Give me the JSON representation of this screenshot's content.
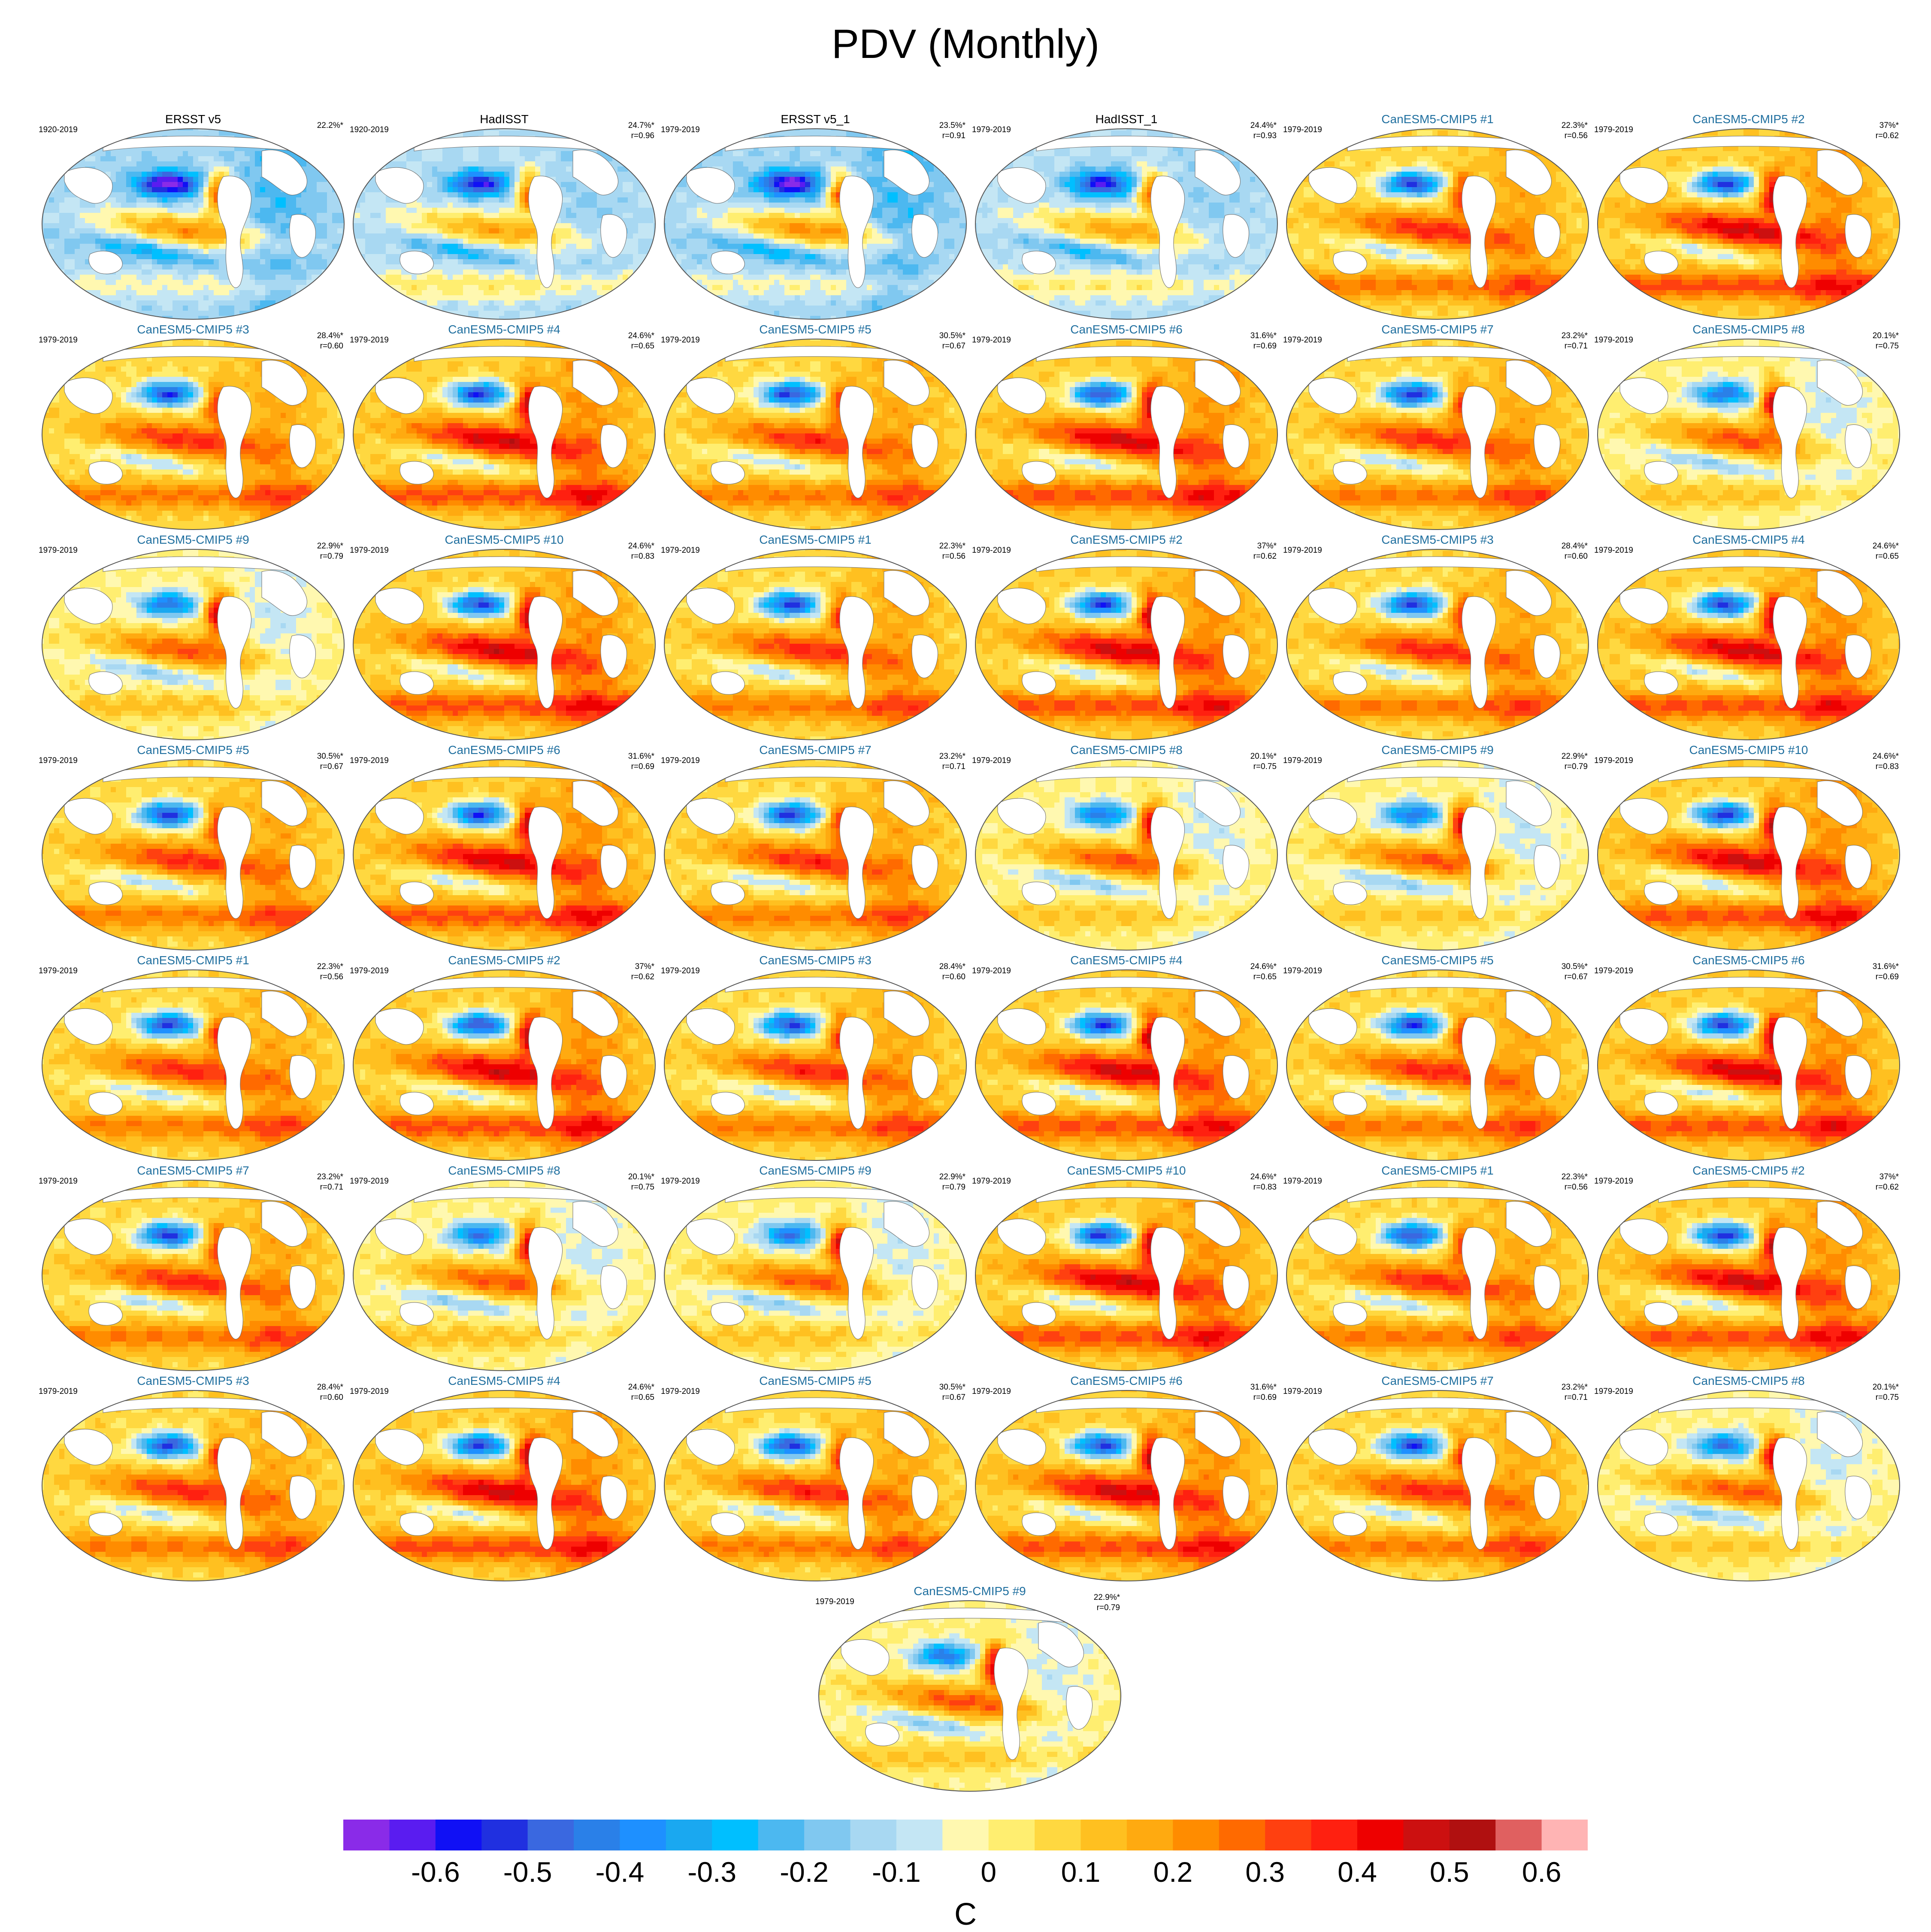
{
  "title": "PDV (Monthly)",
  "colorbar": {
    "units": "C",
    "tick_labels": [
      "-0.6",
      "-0.5",
      "-0.4",
      "-0.3",
      "-0.2",
      "-0.1",
      "0",
      "0.1",
      "0.2",
      "0.3",
      "0.4",
      "0.5",
      "0.6"
    ],
    "colors": [
      "#8a2be8",
      "#5a1cf0",
      "#1010f5",
      "#2030e0",
      "#3a68e0",
      "#2a80e8",
      "#1e90ff",
      "#1aa8f0",
      "#00bfff",
      "#4cb8f0",
      "#80c8f0",
      "#a8d8f2",
      "#c4e6f4",
      "#fff8b0",
      "#ffee70",
      "#ffd840",
      "#ffc020",
      "#ffaa10",
      "#ff8c00",
      "#ff6a00",
      "#ff4010",
      "#ff2010",
      "#ee0000",
      "#cc1010",
      "#b01010",
      "#e06060",
      "#ffb4b4"
    ]
  },
  "chart_data": {
    "type": "heatmap",
    "title": "PDV (Monthly)",
    "units": "C",
    "levels": [
      -0.65,
      -0.6,
      -0.55,
      -0.5,
      -0.45,
      -0.4,
      -0.35,
      -0.3,
      -0.25,
      -0.2,
      -0.15,
      -0.1,
      -0.05,
      0,
      0.05,
      0.1,
      0.15,
      0.2,
      0.25,
      0.3,
      0.35,
      0.4,
      0.45,
      0.5,
      0.55,
      0.6,
      0.65
    ],
    "panels": [
      {
        "title": "ERSST v5",
        "period": "1920-2019",
        "pct": "22.2%*",
        "r": "",
        "kind": "obs",
        "pattern": 0
      },
      {
        "title": "HadISST",
        "period": "1920-2019",
        "pct": "24.7%*",
        "r": "r=0.96",
        "kind": "obs",
        "pattern": 1
      },
      {
        "title": "ERSST v5_1",
        "period": "1979-2019",
        "pct": "23.5%*",
        "r": "r=0.91",
        "kind": "obs",
        "pattern": 0
      },
      {
        "title": "HadISST_1",
        "period": "1979-2019",
        "pct": "24.4%*",
        "r": "r=0.93",
        "kind": "obs",
        "pattern": 1
      },
      {
        "title": "CanESM5-CMIP5 #1",
        "period": "1979-2019",
        "pct": "22.3%*",
        "r": "r=0.56",
        "kind": "model",
        "pattern": 2
      },
      {
        "title": "CanESM5-CMIP5 #2",
        "period": "1979-2019",
        "pct": "37%*",
        "r": "r=0.62",
        "kind": "model",
        "pattern": 3
      },
      {
        "title": "CanESM5-CMIP5 #3",
        "period": "1979-2019",
        "pct": "28.4%*",
        "r": "r=0.60",
        "kind": "model",
        "pattern": 2
      },
      {
        "title": "CanESM5-CMIP5 #4",
        "period": "1979-2019",
        "pct": "24.6%*",
        "r": "r=0.65",
        "kind": "model",
        "pattern": 3
      },
      {
        "title": "CanESM5-CMIP5 #5",
        "period": "1979-2019",
        "pct": "30.5%*",
        "r": "r=0.67",
        "kind": "model",
        "pattern": 2
      },
      {
        "title": "CanESM5-CMIP5 #6",
        "period": "1979-2019",
        "pct": "31.6%*",
        "r": "r=0.69",
        "kind": "model",
        "pattern": 3
      },
      {
        "title": "CanESM5-CMIP5 #7",
        "period": "1979-2019",
        "pct": "23.2%*",
        "r": "r=0.71",
        "kind": "model",
        "pattern": 2
      },
      {
        "title": "CanESM5-CMIP5 #8",
        "period": "1979-2019",
        "pct": "20.1%*",
        "r": "r=0.75",
        "kind": "model",
        "pattern": 4
      },
      {
        "title": "CanESM5-CMIP5 #9",
        "period": "1979-2019",
        "pct": "22.9%*",
        "r": "r=0.79",
        "kind": "model",
        "pattern": 4
      },
      {
        "title": "CanESM5-CMIP5 #10",
        "period": "1979-2019",
        "pct": "24.6%*",
        "r": "r=0.83",
        "kind": "model",
        "pattern": 3
      },
      {
        "title": "CanESM5-CMIP5 #1",
        "period": "1979-2019",
        "pct": "22.3%*",
        "r": "r=0.56",
        "kind": "model",
        "pattern": 2
      },
      {
        "title": "CanESM5-CMIP5 #2",
        "period": "1979-2019",
        "pct": "37%*",
        "r": "r=0.62",
        "kind": "model",
        "pattern": 3
      },
      {
        "title": "CanESM5-CMIP5 #3",
        "period": "1979-2019",
        "pct": "28.4%*",
        "r": "r=0.60",
        "kind": "model",
        "pattern": 2
      },
      {
        "title": "CanESM5-CMIP5 #4",
        "period": "1979-2019",
        "pct": "24.6%*",
        "r": "r=0.65",
        "kind": "model",
        "pattern": 3
      },
      {
        "title": "CanESM5-CMIP5 #5",
        "period": "1979-2019",
        "pct": "30.5%*",
        "r": "r=0.67",
        "kind": "model",
        "pattern": 2
      },
      {
        "title": "CanESM5-CMIP5 #6",
        "period": "1979-2019",
        "pct": "31.6%*",
        "r": "r=0.69",
        "kind": "model",
        "pattern": 3
      },
      {
        "title": "CanESM5-CMIP5 #7",
        "period": "1979-2019",
        "pct": "23.2%*",
        "r": "r=0.71",
        "kind": "model",
        "pattern": 2
      },
      {
        "title": "CanESM5-CMIP5 #8",
        "period": "1979-2019",
        "pct": "20.1%*",
        "r": "r=0.75",
        "kind": "model",
        "pattern": 4
      },
      {
        "title": "CanESM5-CMIP5 #9",
        "period": "1979-2019",
        "pct": "22.9%*",
        "r": "r=0.79",
        "kind": "model",
        "pattern": 4
      },
      {
        "title": "CanESM5-CMIP5 #10",
        "period": "1979-2019",
        "pct": "24.6%*",
        "r": "r=0.83",
        "kind": "model",
        "pattern": 3
      },
      {
        "title": "CanESM5-CMIP5 #1",
        "period": "1979-2019",
        "pct": "22.3%*",
        "r": "r=0.56",
        "kind": "model",
        "pattern": 2
      },
      {
        "title": "CanESM5-CMIP5 #2",
        "period": "1979-2019",
        "pct": "37%*",
        "r": "r=0.62",
        "kind": "model",
        "pattern": 3
      },
      {
        "title": "CanESM5-CMIP5 #3",
        "period": "1979-2019",
        "pct": "28.4%*",
        "r": "r=0.60",
        "kind": "model",
        "pattern": 2
      },
      {
        "title": "CanESM5-CMIP5 #4",
        "period": "1979-2019",
        "pct": "24.6%*",
        "r": "r=0.65",
        "kind": "model",
        "pattern": 3
      },
      {
        "title": "CanESM5-CMIP5 #5",
        "period": "1979-2019",
        "pct": "30.5%*",
        "r": "r=0.67",
        "kind": "model",
        "pattern": 2
      },
      {
        "title": "CanESM5-CMIP5 #6",
        "period": "1979-2019",
        "pct": "31.6%*",
        "r": "r=0.69",
        "kind": "model",
        "pattern": 3
      },
      {
        "title": "CanESM5-CMIP5 #7",
        "period": "1979-2019",
        "pct": "23.2%*",
        "r": "r=0.71",
        "kind": "model",
        "pattern": 2
      },
      {
        "title": "CanESM5-CMIP5 #8",
        "period": "1979-2019",
        "pct": "20.1%*",
        "r": "r=0.75",
        "kind": "model",
        "pattern": 4
      },
      {
        "title": "CanESM5-CMIP5 #9",
        "period": "1979-2019",
        "pct": "22.9%*",
        "r": "r=0.79",
        "kind": "model",
        "pattern": 4
      },
      {
        "title": "CanESM5-CMIP5 #10",
        "period": "1979-2019",
        "pct": "24.6%*",
        "r": "r=0.83",
        "kind": "model",
        "pattern": 3
      },
      {
        "title": "CanESM5-CMIP5 #1",
        "period": "1979-2019",
        "pct": "22.3%*",
        "r": "r=0.56",
        "kind": "model",
        "pattern": 2
      },
      {
        "title": "CanESM5-CMIP5 #2",
        "period": "1979-2019",
        "pct": "37%*",
        "r": "r=0.62",
        "kind": "model",
        "pattern": 3
      },
      {
        "title": "CanESM5-CMIP5 #3",
        "period": "1979-2019",
        "pct": "28.4%*",
        "r": "r=0.60",
        "kind": "model",
        "pattern": 2
      },
      {
        "title": "CanESM5-CMIP5 #4",
        "period": "1979-2019",
        "pct": "24.6%*",
        "r": "r=0.65",
        "kind": "model",
        "pattern": 3
      },
      {
        "title": "CanESM5-CMIP5 #5",
        "period": "1979-2019",
        "pct": "30.5%*",
        "r": "r=0.67",
        "kind": "model",
        "pattern": 2
      },
      {
        "title": "CanESM5-CMIP5 #6",
        "period": "1979-2019",
        "pct": "31.6%*",
        "r": "r=0.69",
        "kind": "model",
        "pattern": 3
      },
      {
        "title": "CanESM5-CMIP5 #7",
        "period": "1979-2019",
        "pct": "23.2%*",
        "r": "r=0.71",
        "kind": "model",
        "pattern": 2
      },
      {
        "title": "CanESM5-CMIP5 #8",
        "period": "1979-2019",
        "pct": "20.1%*",
        "r": "r=0.75",
        "kind": "model",
        "pattern": 4
      },
      {
        "title": "CanESM5-CMIP5 #9",
        "period": "1979-2019",
        "pct": "22.9%*",
        "r": "r=0.79",
        "kind": "model",
        "pattern": 4
      }
    ]
  }
}
